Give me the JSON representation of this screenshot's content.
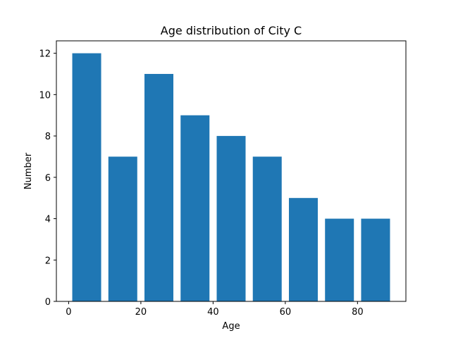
{
  "chart_data": {
    "type": "bar",
    "title": "Age distribution of City C",
    "xlabel": "Age",
    "ylabel": "Number",
    "x": [
      5,
      15,
      25,
      35,
      45,
      55,
      65,
      75,
      85
    ],
    "bar_width": 8,
    "values": [
      12,
      7,
      11,
      9,
      8,
      7,
      5,
      4,
      4
    ],
    "xlim": [
      -3.4,
      93.4
    ],
    "ylim": [
      0,
      12.6
    ],
    "xticks": [
      0,
      20,
      40,
      60,
      80
    ],
    "yticks": [
      0,
      2,
      4,
      6,
      8,
      10,
      12
    ],
    "grid": false,
    "bar_color": "#1f77b4"
  }
}
